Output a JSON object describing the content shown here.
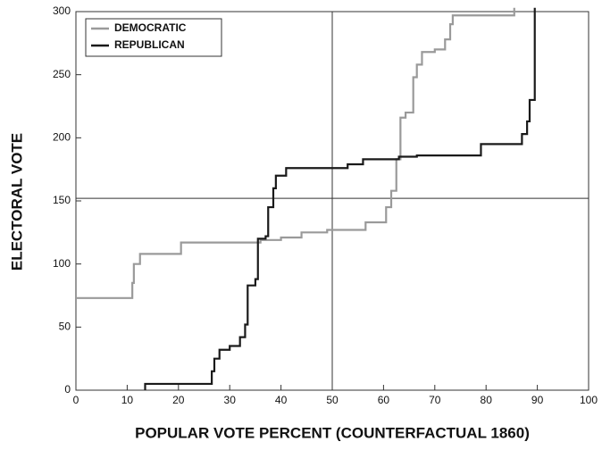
{
  "chart_data": {
    "type": "line",
    "xlabel": "POPULAR VOTE PERCENT (COUNTERFACTUAL 1860)",
    "ylabel": "ELECTORAL VOTE",
    "xlim": [
      0,
      100
    ],
    "ylim": [
      0,
      300
    ],
    "xticks": [
      0,
      10,
      20,
      30,
      40,
      50,
      60,
      70,
      80,
      90,
      100
    ],
    "yticks": [
      0,
      50,
      100,
      150,
      200,
      250,
      300
    ],
    "reference_lines": {
      "x": 50,
      "y": 152
    },
    "legend": "upper left",
    "series": [
      {
        "name": "DEMOCRATIC",
        "color": "#9a9a9a",
        "x": [
          0,
          11,
          11,
          11.3,
          11.3,
          12.5,
          12.5,
          20.5,
          20.5,
          36,
          36,
          40,
          40,
          44,
          44,
          49,
          49,
          56.5,
          56.5,
          60.5,
          60.5,
          61.5,
          61.5,
          62.5,
          62.5,
          63.3,
          63.3,
          64.3,
          64.3,
          65.8,
          65.8,
          66.5,
          66.5,
          67.5,
          67.5,
          70,
          70,
          72,
          72,
          73,
          73,
          73.5,
          73.5,
          85.5,
          85.5
        ],
        "y": [
          73,
          73,
          85,
          85,
          100,
          100,
          108,
          108,
          117,
          117,
          119,
          119,
          121,
          121,
          125,
          125,
          127,
          127,
          133,
          133,
          145,
          145,
          158,
          158,
          183,
          183,
          216,
          216,
          220,
          220,
          248,
          248,
          258,
          258,
          268,
          268,
          270,
          270,
          278,
          278,
          290,
          290,
          297,
          297,
          303
        ]
      },
      {
        "name": "REPUBLICAN",
        "color": "#1a1a1a",
        "x": [
          13.5,
          13.5,
          26.5,
          26.5,
          27,
          27,
          28,
          28,
          30,
          30,
          32,
          32,
          33,
          33,
          33.5,
          33.5,
          35,
          35,
          35.5,
          35.5,
          37,
          37,
          37.5,
          37.5,
          38.5,
          38.5,
          39,
          39,
          41,
          41,
          53,
          53,
          56,
          56,
          63,
          63,
          66.5,
          66.5,
          79,
          79,
          87,
          87,
          88,
          88,
          88.5,
          88.5,
          89.5,
          89.5
        ],
        "y": [
          0,
          5,
          5,
          15,
          15,
          25,
          25,
          32,
          32,
          35,
          35,
          42,
          42,
          52,
          52,
          83,
          83,
          88,
          88,
          120,
          120,
          122,
          122,
          145,
          145,
          160,
          160,
          170,
          170,
          176,
          176,
          179,
          179,
          183,
          183,
          185,
          185,
          186,
          186,
          195,
          195,
          203,
          203,
          213,
          213,
          230,
          230,
          303
        ]
      }
    ]
  }
}
